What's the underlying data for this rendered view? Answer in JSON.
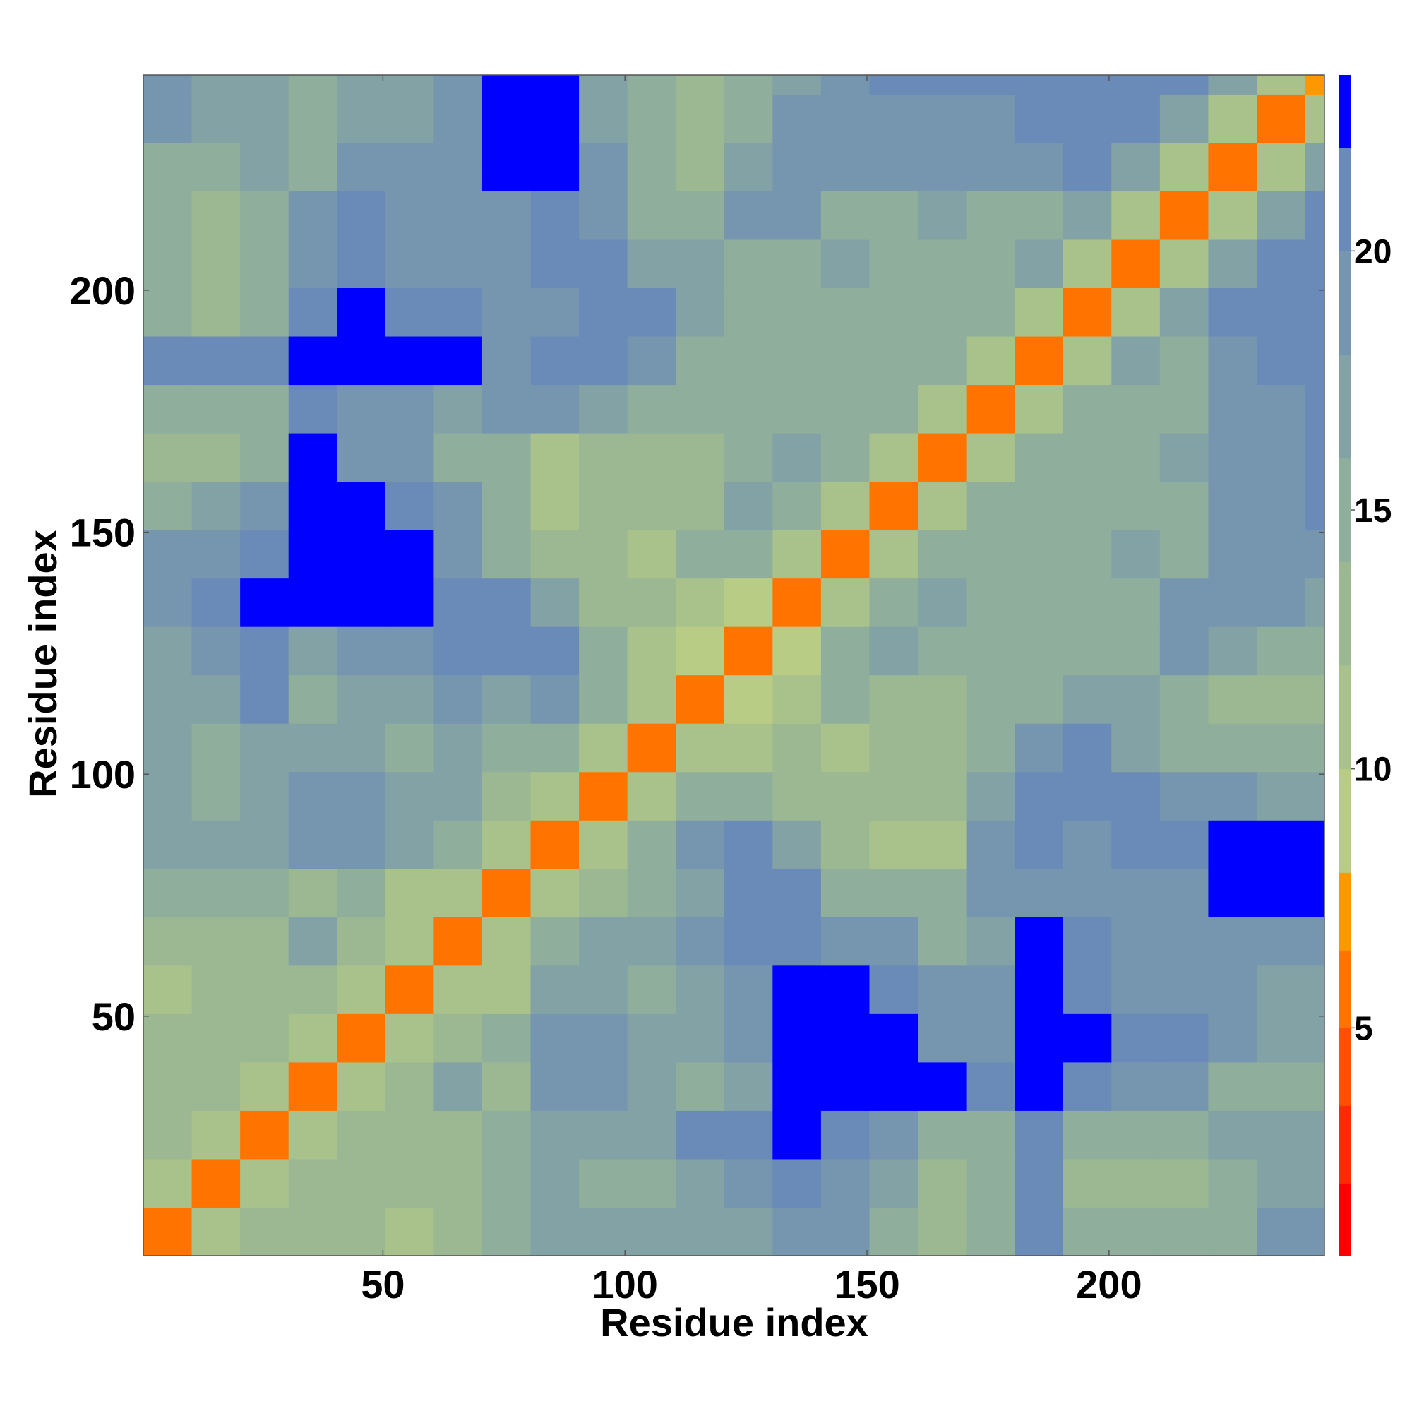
{
  "chart_data": {
    "type": "heatmap",
    "xlabel": "Residue index",
    "ylabel": "Residue index",
    "x_bins": [
      0.5,
      10.5,
      20.5,
      30.5,
      40.5,
      50.5,
      60.5,
      70.5,
      80.5,
      90.5,
      100.5,
      110.5,
      120.5,
      130.5,
      140.5,
      150.5,
      160.5,
      170.5,
      180.5,
      190.5,
      200.5,
      210.5,
      220.5,
      230.5,
      240.5,
      244.5
    ],
    "y_bins": [
      0.5,
      10.5,
      20.5,
      30.5,
      40.5,
      50.5,
      60.5,
      70.5,
      80.5,
      90.5,
      100.5,
      110.5,
      120.5,
      130.5,
      140.5,
      150.5,
      160.5,
      170.5,
      180.5,
      190.5,
      200.5,
      210.5,
      220.5,
      230.5,
      240.5,
      244.5
    ],
    "xlim": [
      0.5,
      244.5
    ],
    "ylim": [
      0.5,
      244.5
    ],
    "xticks": [
      50,
      100,
      150,
      200
    ],
    "yticks": [
      50,
      100,
      150,
      200
    ],
    "z": [
      [
        6,
        11,
        13,
        13,
        14,
        12,
        14,
        15,
        17,
        17,
        17,
        18,
        18,
        20,
        20,
        16,
        14,
        15,
        21,
        15,
        15,
        15,
        15,
        19,
        19
      ],
      [
        11,
        6,
        11,
        13,
        13,
        13,
        14,
        15,
        17,
        16,
        16,
        17,
        19,
        21,
        20,
        17,
        14,
        15,
        22,
        14,
        14,
        14,
        15,
        18,
        17
      ],
      [
        13,
        11,
        6,
        11,
        14,
        14,
        14,
        16,
        18,
        17,
        18,
        21,
        22,
        23,
        22,
        20,
        15,
        16,
        22,
        16,
        15,
        16,
        18,
        17,
        18
      ],
      [
        13,
        13,
        11,
        6,
        11,
        13,
        18,
        14,
        19,
        20,
        17,
        16,
        18,
        23,
        23,
        23,
        23,
        22,
        23,
        22,
        20,
        19,
        15,
        15,
        16
      ],
      [
        14,
        13,
        14,
        11,
        6,
        11,
        13,
        16,
        20,
        20,
        17,
        18,
        20,
        23,
        23,
        23,
        19,
        19,
        23,
        23,
        22,
        21,
        19,
        17,
        17
      ],
      [
        12,
        13,
        14,
        13,
        11,
        6,
        11,
        12,
        17,
        17,
        16,
        17,
        20,
        23,
        23,
        22,
        19,
        19,
        23,
        22,
        19,
        19,
        19,
        17,
        18
      ],
      [
        14,
        14,
        14,
        18,
        13,
        11,
        6,
        11,
        15,
        17,
        17,
        20,
        22,
        22,
        20,
        19,
        16,
        18,
        23,
        21,
        19,
        20,
        20,
        20,
        20
      ],
      [
        15,
        15,
        16,
        14,
        16,
        12,
        11,
        6,
        11,
        14,
        16,
        18,
        22,
        22,
        16,
        16,
        15,
        19,
        20,
        20,
        20,
        20,
        23,
        23,
        23
      ],
      [
        17,
        17,
        18,
        19,
        20,
        17,
        15,
        11,
        6,
        11,
        15,
        19,
        22,
        17,
        14,
        12,
        12,
        19,
        22,
        19,
        21,
        22,
        23,
        23,
        23
      ],
      [
        17,
        16,
        17,
        20,
        20,
        17,
        17,
        14,
        11,
        6,
        11,
        16,
        16,
        14,
        13,
        13,
        13,
        17,
        22,
        21,
        21,
        20,
        19,
        18,
        17
      ],
      [
        17,
        16,
        18,
        17,
        17,
        16,
        17,
        16,
        15,
        11,
        6,
        11,
        12,
        13,
        12,
        13,
        13,
        16,
        19,
        21,
        17,
        16,
        15,
        15,
        15
      ],
      [
        18,
        17,
        21,
        16,
        18,
        17,
        20,
        18,
        19,
        16,
        11,
        6,
        10,
        12,
        15,
        13,
        13,
        15,
        16,
        18,
        17,
        16,
        14,
        14,
        14
      ],
      [
        18,
        19,
        22,
        18,
        20,
        20,
        22,
        22,
        22,
        16,
        12,
        10,
        6,
        10,
        15,
        17,
        15,
        15,
        15,
        16,
        16,
        19,
        17,
        15,
        15
      ],
      [
        20,
        21,
        23,
        23,
        23,
        23,
        22,
        22,
        17,
        14,
        13,
        12,
        10,
        6,
        11,
        16,
        17,
        15,
        15,
        16,
        16,
        20,
        20,
        19,
        18
      ],
      [
        20,
        20,
        22,
        23,
        23,
        23,
        20,
        16,
        14,
        13,
        12,
        15,
        15,
        11,
        6,
        11,
        16,
        15,
        15,
        15,
        18,
        16,
        19,
        19,
        20
      ],
      [
        16,
        17,
        20,
        23,
        23,
        22,
        19,
        16,
        12,
        13,
        13,
        13,
        17,
        16,
        11,
        6,
        11,
        16,
        15,
        15,
        16,
        16,
        19,
        20,
        21
      ],
      [
        14,
        14,
        15,
        23,
        19,
        19,
        16,
        15,
        12,
        13,
        13,
        13,
        15,
        17,
        16,
        11,
        6,
        11,
        16,
        16,
        15,
        17,
        19,
        20,
        21
      ],
      [
        15,
        15,
        16,
        22,
        19,
        19,
        18,
        19,
        19,
        17,
        16,
        15,
        15,
        15,
        15,
        16,
        11,
        6,
        11,
        16,
        15,
        16,
        19,
        20,
        21
      ],
      [
        21,
        22,
        22,
        23,
        23,
        23,
        23,
        20,
        22,
        22,
        19,
        16,
        15,
        15,
        15,
        15,
        16,
        11,
        6,
        11,
        17,
        16,
        20,
        21,
        22
      ],
      [
        15,
        14,
        16,
        22,
        23,
        22,
        21,
        20,
        19,
        21,
        21,
        18,
        16,
        16,
        15,
        15,
        16,
        16,
        11,
        6,
        11,
        17,
        21,
        22,
        22
      ],
      [
        15,
        14,
        15,
        20,
        22,
        19,
        19,
        20,
        21,
        21,
        17,
        17,
        16,
        16,
        18,
        16,
        15,
        15,
        17,
        11,
        6,
        11,
        17,
        21,
        22
      ],
      [
        15,
        14,
        16,
        19,
        21,
        19,
        20,
        20,
        22,
        20,
        16,
        16,
        19,
        20,
        16,
        16,
        17,
        16,
        16,
        17,
        11,
        6,
        11,
        17,
        21
      ],
      [
        15,
        15,
        18,
        15,
        19,
        19,
        20,
        23,
        23,
        19,
        15,
        14,
        17,
        20,
        19,
        19,
        19,
        19,
        20,
        21,
        17,
        11,
        6,
        11,
        17
      ],
      [
        19,
        18,
        17,
        15,
        17,
        17,
        20,
        23,
        23,
        18,
        15,
        14,
        15,
        19,
        19,
        20,
        20,
        20,
        21,
        22,
        21,
        17,
        11,
        6,
        11
      ],
      [
        19,
        17,
        18,
        16,
        17,
        18,
        20,
        23,
        23,
        17,
        15,
        14,
        15,
        18,
        20,
        21,
        21,
        21,
        22,
        22,
        22,
        21,
        17,
        11,
        7
      ]
    ],
    "colorbar": {
      "lim": [
        0.6,
        23.4
      ],
      "ticks": [
        5,
        10,
        15,
        20
      ],
      "boundaries": [
        0.6,
        2.0,
        3.5,
        5.0,
        6.5,
        8.0,
        10,
        12,
        14,
        16,
        18,
        20,
        22,
        23.4
      ],
      "colors": [
        "#ff0000",
        "#ff2a00",
        "#ff5000",
        "#ff7400",
        "#ff9800",
        "#b8cc86",
        "#a9c28c",
        "#9bb893",
        "#8fae9c",
        "#83a2a6",
        "#7696b0",
        "#6a8bb8",
        "#0000ff"
      ]
    }
  }
}
